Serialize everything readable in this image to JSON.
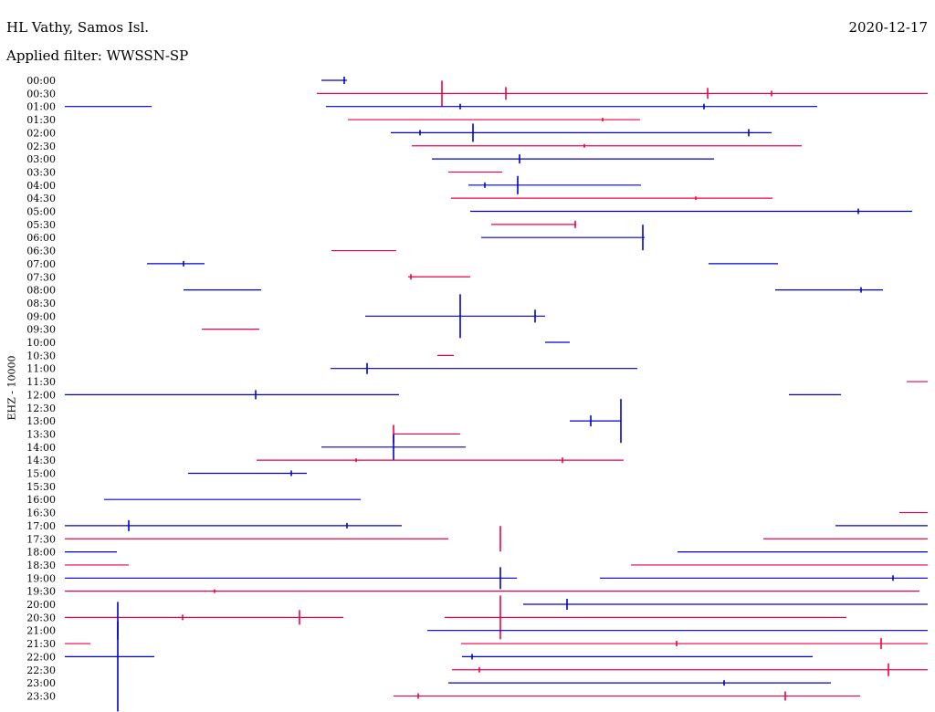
{
  "header": {
    "station": "HL Vathy, Samos Isl.",
    "date": "2020-12-17",
    "filter": "Applied filter: WWSSN-SP"
  },
  "chart_data": {
    "type": "line",
    "title": "HL Vathy, Samos Isl.",
    "ylabel": "EHZ - 10000",
    "colors": [
      "#0000cc",
      "#ee0044"
    ],
    "rows": [
      {
        "label": "00:00",
        "segments": [
          [
            352,
            380
          ]
        ],
        "spikes": [
          [
            377,
            4
          ]
        ]
      },
      {
        "label": "00:30",
        "segments": [
          [
            347,
            1016
          ]
        ],
        "spikes": [
          [
            484,
            14
          ],
          [
            554,
            7
          ],
          [
            775,
            6
          ],
          [
            845,
            3
          ]
        ]
      },
      {
        "label": "01:00",
        "segments": [
          [
            71,
            166
          ],
          [
            357,
            895
          ]
        ],
        "spikes": [
          [
            504,
            3
          ],
          [
            771,
            3
          ]
        ]
      },
      {
        "label": "01:30",
        "segments": [
          [
            381,
            701
          ]
        ],
        "spikes": [
          [
            660,
            2
          ]
        ]
      },
      {
        "label": "02:00",
        "segments": [
          [
            428,
            845
          ]
        ],
        "spikes": [
          [
            518,
            10
          ],
          [
            460,
            3
          ],
          [
            820,
            4
          ]
        ]
      },
      {
        "label": "02:30",
        "segments": [
          [
            451,
            878
          ]
        ],
        "spikes": [
          [
            640,
            2
          ]
        ]
      },
      {
        "label": "03:00",
        "segments": [
          [
            473,
            782
          ]
        ],
        "spikes": [
          [
            569,
            5
          ]
        ]
      },
      {
        "label": "03:30",
        "segments": [
          [
            491,
            550
          ]
        ],
        "spikes": []
      },
      {
        "label": "04:00",
        "segments": [
          [
            513,
            702
          ]
        ],
        "spikes": [
          [
            567,
            10
          ],
          [
            531,
            3
          ]
        ]
      },
      {
        "label": "04:30",
        "segments": [
          [
            494,
            846
          ]
        ],
        "spikes": [
          [
            762,
            2
          ]
        ]
      },
      {
        "label": "05:00",
        "segments": [
          [
            515,
            999
          ]
        ],
        "spikes": [
          [
            940,
            3
          ]
        ]
      },
      {
        "label": "05:30",
        "segments": [
          [
            538,
            631
          ]
        ],
        "spikes": [
          [
            630,
            4
          ]
        ]
      },
      {
        "label": "06:00",
        "segments": [
          [
            527,
            706
          ]
        ],
        "spikes": [
          [
            704,
            14
          ]
        ]
      },
      {
        "label": "06:30",
        "segments": [
          [
            363,
            434
          ]
        ],
        "spikes": []
      },
      {
        "label": "07:00",
        "segments": [
          [
            161,
            224
          ],
          [
            776,
            852
          ]
        ],
        "spikes": [
          [
            201,
            3
          ]
        ]
      },
      {
        "label": "07:30",
        "segments": [
          [
            447,
            515
          ]
        ],
        "spikes": [
          [
            450,
            3
          ]
        ]
      },
      {
        "label": "08:00",
        "segments": [
          [
            201,
            286
          ],
          [
            849,
            967
          ]
        ],
        "spikes": [
          [
            943,
            3
          ]
        ]
      },
      {
        "label": "08:30",
        "segments": [],
        "spikes": []
      },
      {
        "label": "09:00",
        "segments": [
          [
            400,
            597
          ]
        ],
        "spikes": [
          [
            504,
            24
          ],
          [
            586,
            7
          ]
        ]
      },
      {
        "label": "09:30",
        "segments": [
          [
            221,
            284
          ]
        ],
        "spikes": []
      },
      {
        "label": "10:00",
        "segments": [
          [
            597,
            624
          ]
        ],
        "spikes": []
      },
      {
        "label": "10:30",
        "segments": [
          [
            479,
            497
          ]
        ],
        "spikes": []
      },
      {
        "label": "11:00",
        "segments": [
          [
            362,
            698
          ]
        ],
        "spikes": [
          [
            402,
            6
          ]
        ]
      },
      {
        "label": "11:30",
        "segments": [
          [
            993,
            1016
          ]
        ],
        "spikes": []
      },
      {
        "label": "12:00",
        "segments": [
          [
            71,
            437
          ],
          [
            864,
            921
          ]
        ],
        "spikes": [
          [
            280,
            5
          ]
        ]
      },
      {
        "label": "12:30",
        "segments": [],
        "spikes": []
      },
      {
        "label": "13:00",
        "segments": [
          [
            624,
            680
          ]
        ],
        "spikes": [
          [
            647,
            6
          ],
          [
            680,
            24
          ]
        ]
      },
      {
        "label": "13:30",
        "segments": [
          [
            431,
            504
          ]
        ],
        "spikes": [
          [
            431,
            10
          ]
        ]
      },
      {
        "label": "14:00",
        "segments": [
          [
            352,
            510
          ]
        ],
        "spikes": [
          [
            431,
            14
          ]
        ]
      },
      {
        "label": "14:30",
        "segments": [
          [
            281,
            683
          ]
        ],
        "spikes": [
          [
            616,
            3
          ],
          [
            390,
            2
          ]
        ]
      },
      {
        "label": "15:00",
        "segments": [
          [
            206,
            336
          ]
        ],
        "spikes": [
          [
            319,
            3
          ]
        ]
      },
      {
        "label": "15:30",
        "segments": [],
        "spikes": []
      },
      {
        "label": "16:00",
        "segments": [
          [
            114,
            395
          ]
        ],
        "spikes": []
      },
      {
        "label": "16:30",
        "segments": [
          [
            985,
            1016
          ]
        ],
        "spikes": []
      },
      {
        "label": "17:00",
        "segments": [
          [
            71,
            440
          ],
          [
            915,
            1016
          ]
        ],
        "spikes": [
          [
            141,
            6
          ],
          [
            380,
            3
          ]
        ]
      },
      {
        "label": "17:30",
        "segments": [
          [
            71,
            491
          ],
          [
            836,
            1016
          ]
        ],
        "spikes": [
          [
            548,
            14
          ]
        ]
      },
      {
        "label": "18:00",
        "segments": [
          [
            71,
            128
          ],
          [
            742,
            1016
          ]
        ],
        "spikes": []
      },
      {
        "label": "18:30",
        "segments": [
          [
            71,
            141
          ],
          [
            691,
            1016
          ]
        ],
        "spikes": []
      },
      {
        "label": "19:00",
        "segments": [
          [
            71,
            566
          ],
          [
            657,
            1016
          ]
        ],
        "spikes": [
          [
            548,
            12
          ],
          [
            978,
            3
          ]
        ]
      },
      {
        "label": "19:30",
        "segments": [
          [
            71,
            1007
          ]
        ],
        "spikes": [
          [
            235,
            2
          ]
        ]
      },
      {
        "label": "20:00",
        "segments": [
          [
            573,
            1016
          ]
        ],
        "spikes": [
          [
            621,
            6
          ]
        ]
      },
      {
        "label": "20:30",
        "segments": [
          [
            71,
            376
          ],
          [
            487,
            927
          ]
        ],
        "spikes": [
          [
            548,
            24
          ],
          [
            328,
            8
          ],
          [
            200,
            3
          ]
        ]
      },
      {
        "label": "21:00",
        "segments": [
          [
            468,
            1016
          ]
        ],
        "spikes": [
          [
            129,
            10
          ]
        ]
      },
      {
        "label": "21:30",
        "segments": [
          [
            71,
            99
          ],
          [
            505,
            1016
          ]
        ],
        "spikes": [
          [
            965,
            6
          ],
          [
            741,
            3
          ]
        ]
      },
      {
        "label": "22:00",
        "segments": [
          [
            71,
            169
          ],
          [
            506,
            890
          ]
        ],
        "spikes": [
          [
            129,
            60
          ],
          [
            517,
            3
          ]
        ]
      },
      {
        "label": "22:30",
        "segments": [
          [
            495,
            1016
          ]
        ],
        "spikes": [
          [
            973,
            7
          ],
          [
            525,
            3
          ]
        ]
      },
      {
        "label": "23:00",
        "segments": [
          [
            491,
            910
          ]
        ],
        "spikes": [
          [
            793,
            3
          ]
        ]
      },
      {
        "label": "23:30",
        "segments": [
          [
            431,
            942
          ]
        ],
        "spikes": [
          [
            860,
            5
          ],
          [
            458,
            3
          ]
        ]
      }
    ]
  }
}
